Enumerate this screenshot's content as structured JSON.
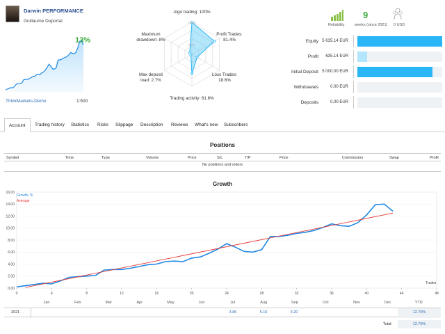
{
  "profile": {
    "title": "Darwin PERFORMANCE",
    "author": "Guillaume Duportal",
    "growth_pct": "13%",
    "broker": "ThinkMarkets-Demo",
    "leverage": "1:500"
  },
  "radar": {
    "labels": {
      "algo": "Algo trading: 100%",
      "profit": "Profit Trades:\n81.4%",
      "loss": "Loss Trades:\n18.6%",
      "activity": "Trading activity: 61.6%",
      "deposit_load": "Max deposit\nload: 2.7%",
      "drawdown": "Maximum\ndrawdown: 8%"
    },
    "ring_100": "100%",
    "ring_50": "50%",
    "values": [
      100,
      81.4,
      18.6,
      61.6,
      2.7,
      8
    ]
  },
  "summary": {
    "reliability_label": "Reliability",
    "weeks": "9",
    "weeks_label": "weeks (since 2021)",
    "subscribers_value": "0 USD",
    "rows": [
      {
        "label": "Equity",
        "value": "5 635.14 EUR",
        "fill": 1.0,
        "color": "#29b6f6"
      },
      {
        "label": "Profit",
        "value": "635.14 EUR",
        "fill": 0.113,
        "color": "#b3e5fc"
      },
      {
        "label": "Initial Deposit",
        "value": "5 000.00 EUR",
        "fill": 0.887,
        "color": "#29b6f6"
      },
      {
        "label": "Withdrawals",
        "value": "0.00 EUR",
        "fill": 0,
        "color": "#29b6f6"
      },
      {
        "label": "Deposits",
        "value": "0.00 EUR",
        "fill": 0,
        "color": "#29b6f6"
      }
    ]
  },
  "tabs": [
    "Account",
    "Trading history",
    "Statistics",
    "Risks",
    "Slippage",
    "Description",
    "Reviews",
    "What's new",
    "Subscribers"
  ],
  "positions": {
    "title": "Positions",
    "columns": [
      "Symbol",
      "Time",
      "Type",
      "Volume",
      "Price",
      "S/L",
      "T/P",
      "Price",
      "Commission",
      "Swap",
      "Profit"
    ],
    "empty_text": "No positions and orders"
  },
  "growth": {
    "title": "Growth",
    "legend_growth": "Growth, %",
    "legend_average": "Average",
    "x_axis_label": "Trades",
    "months": [
      "Jan",
      "Feb",
      "Mar",
      "Apr",
      "May",
      "Jun",
      "Jul",
      "Aug",
      "Sep",
      "Oct",
      "Nov",
      "Dec",
      "YTD"
    ],
    "year": "2021",
    "monthly": {
      "Jul": "3.85",
      "Aug": "5.16",
      "Sep": "3.20"
    },
    "ytd": "12.70%",
    "total_label": "Total:",
    "total_value": "12.70%"
  },
  "chart_data": {
    "type": "line",
    "title": "Growth",
    "xlabel": "Trades",
    "ylabel": "",
    "xlim": [
      0,
      48
    ],
    "ylim": [
      0,
      16
    ],
    "x_ticks": [
      0,
      4,
      8,
      12,
      16,
      20,
      24,
      28,
      32,
      36,
      40,
      44,
      48
    ],
    "y_ticks": [
      "0.00",
      "2.00",
      "4.00",
      "6.00",
      "8.00",
      "10.00",
      "12.00",
      "14.00",
      "16.00"
    ],
    "series": [
      {
        "name": "Growth, %",
        "color": "#1e88e5",
        "x": [
          0,
          1,
          2,
          3,
          4,
          5,
          6,
          7,
          8,
          9,
          10,
          11,
          12,
          13,
          14,
          15,
          16,
          17,
          18,
          19,
          20,
          21,
          22,
          23,
          24,
          25,
          26,
          27,
          28,
          29,
          30,
          31,
          32,
          33,
          34,
          35,
          36,
          37,
          38,
          39,
          40,
          41,
          42,
          43
        ],
        "y": [
          0.2,
          0.4,
          0.6,
          0.8,
          0.7,
          1.2,
          1.8,
          1.9,
          2.0,
          2.1,
          3.0,
          3.1,
          3.1,
          3.3,
          3.6,
          3.9,
          4.0,
          4.4,
          4.5,
          4.4,
          5.0,
          5.2,
          5.8,
          6.5,
          7.4,
          6.8,
          6.1,
          6.0,
          6.4,
          8.6,
          8.6,
          8.8,
          9.1,
          9.3,
          9.6,
          10.1,
          10.7,
          10.4,
          10.3,
          10.9,
          12.2,
          13.9,
          14.0,
          12.8
        ]
      },
      {
        "name": "Average",
        "color": "#e53935",
        "x": [
          1,
          43
        ],
        "y": [
          0.1,
          12.5
        ]
      }
    ]
  }
}
